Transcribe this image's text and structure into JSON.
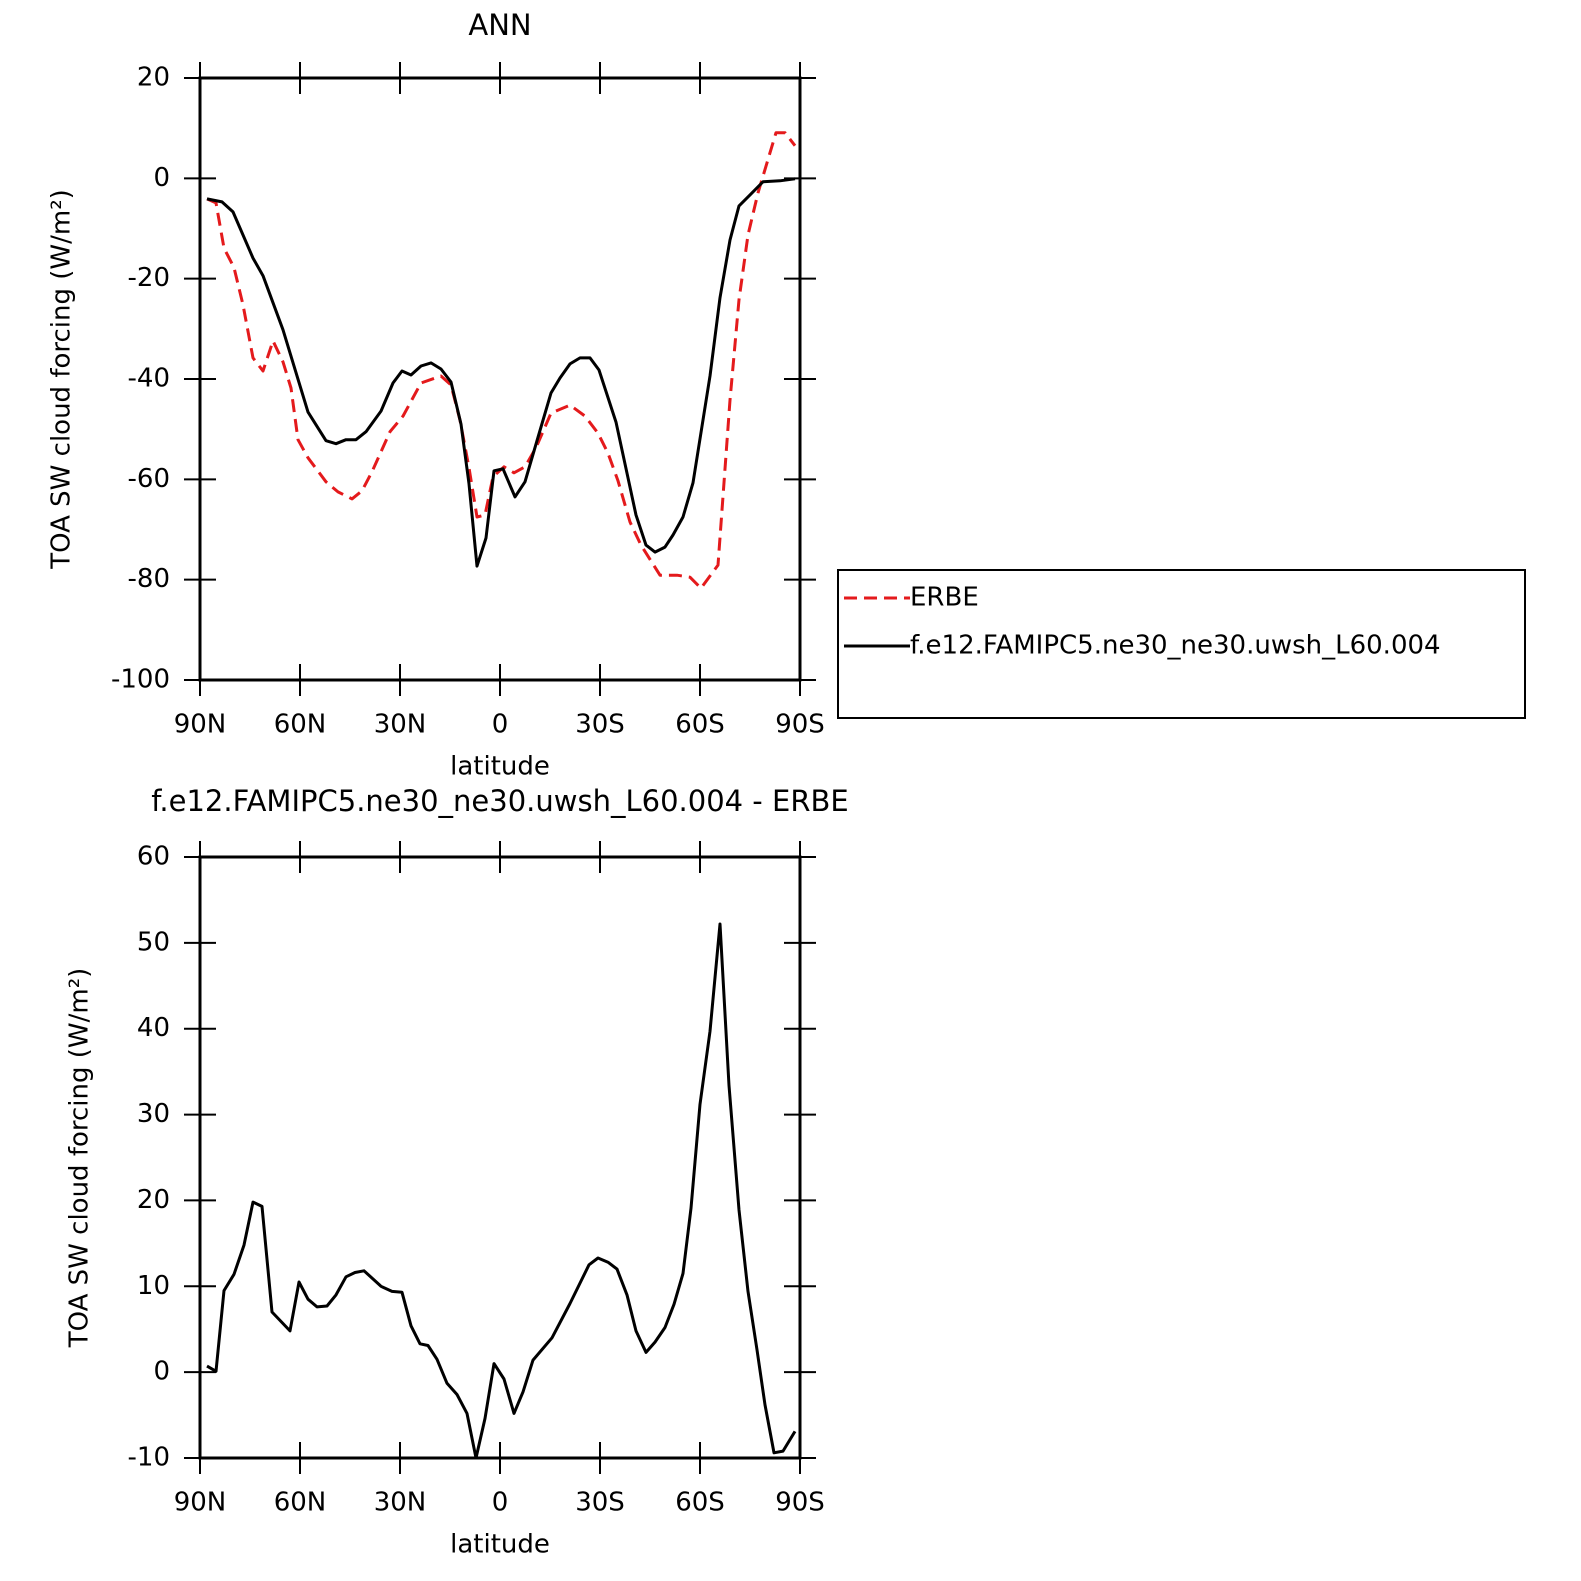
{
  "chart_data": [
    {
      "type": "line",
      "title": "ANN",
      "xlabel": "latitude",
      "ylabel": "TOA SW cloud forcing (W/m²)",
      "xlim": [
        90,
        -90
      ],
      "xticks": [
        {
          "value": 90,
          "label": "90N"
        },
        {
          "value": 60,
          "label": "60N"
        },
        {
          "value": 30,
          "label": "30N"
        },
        0,
        {
          "value": -30,
          "label": "30S"
        },
        {
          "value": -60,
          "label": "60S"
        },
        {
          "value": -90,
          "label": "90S"
        }
      ],
      "ylim": [
        -100,
        20
      ],
      "yticks": [
        -100,
        -80,
        -60,
        -40,
        -20,
        0,
        20
      ],
      "legend": "right",
      "series": [
        {
          "name": "ERBE",
          "color": "#e41a1c",
          "dash": true,
          "x": [
            87.9,
            85.2,
            82.8,
            79.8,
            77.1,
            74.1,
            71.1,
            68.1,
            65.1,
            62.7,
            60.6,
            57.6,
            52.2,
            48.6,
            44.4,
            41.4,
            38.4,
            33,
            29.1,
            23.7,
            17.7,
            14.7,
            12,
            9.3,
            6.9,
            4.5,
            2.1,
            -1.2,
            -4.2,
            -7.5,
            -10.8,
            -15.3,
            -21,
            -25.5,
            -29.4,
            -32.4,
            -35.4,
            -39,
            -42.3,
            -48,
            -53.1,
            -57,
            -60.3,
            -65.4,
            -69,
            -71.7,
            -74.4,
            -77.4,
            -80.1,
            -82.8,
            -85.5,
            -88.5
          ],
          "values": [
            -4.1,
            -4.9,
            -13.9,
            -17.8,
            -25.2,
            -35.8,
            -38.4,
            -32.4,
            -36.6,
            -41.8,
            -52.1,
            -55.7,
            -60.5,
            -62.5,
            -63.9,
            -62.3,
            -58.5,
            -50.5,
            -47.4,
            -40.8,
            -39.4,
            -41.2,
            -48.2,
            -57.7,
            -67.5,
            -67.1,
            -59.5,
            -57.5,
            -58.7,
            -57.5,
            -53.7,
            -46.8,
            -45.2,
            -47.4,
            -50.8,
            -54.8,
            -60.3,
            -68.5,
            -73.1,
            -79.1,
            -79.1,
            -79.5,
            -81.7,
            -77.1,
            -44.2,
            -24.2,
            -11.3,
            -2.9,
            3.1,
            9.1,
            9.1,
            6.5
          ]
        },
        {
          "name": "f.e12.FAMIPC5.ne30_ne30.uwsh_L60.004",
          "color": "#000000",
          "dash": false,
          "x": [
            87.9,
            83.4,
            80.1,
            74.1,
            71.1,
            65.1,
            57.6,
            52.2,
            49.2,
            46.2,
            43.2,
            40.2,
            35.7,
            32.1,
            29.4,
            26.7,
            23.7,
            20.7,
            17.7,
            14.7,
            11.7,
            9.3,
            6.9,
            4.2,
            1.8,
            -0.9,
            -4.5,
            -7.5,
            -11.1,
            -15.3,
            -18,
            -21,
            -24,
            -27,
            -29.7,
            -34.8,
            -40.8,
            -43.8,
            -46.5,
            -49.5,
            -51.9,
            -54.9,
            -57.9,
            -63,
            -66,
            -69,
            -71.7,
            -75,
            -78.9,
            -84,
            -88.5
          ],
          "values": [
            -4.1,
            -4.7,
            -6.7,
            -15.9,
            -19.4,
            -30.2,
            -46.6,
            -52.3,
            -52.9,
            -52.1,
            -52.1,
            -50.5,
            -46.4,
            -40.8,
            -38.4,
            -39.2,
            -37.4,
            -36.8,
            -38,
            -40.6,
            -49,
            -60.9,
            -77.3,
            -71.7,
            -58.3,
            -57.9,
            -63.5,
            -60.5,
            -52.3,
            -42.8,
            -39.8,
            -37,
            -35.8,
            -35.8,
            -38.2,
            -48.6,
            -67.1,
            -73.1,
            -74.5,
            -73.5,
            -71.1,
            -67.5,
            -60.7,
            -39.4,
            -23.8,
            -12.3,
            -5.5,
            -3.3,
            -0.7,
            -0.5,
            -0.1
          ]
        }
      ]
    },
    {
      "type": "line",
      "title": "f.e12.FAMIPC5.ne30_ne30.uwsh_L60.004 - ERBE",
      "xlabel": "latitude",
      "ylabel": "TOA SW cloud forcing (W/m²)",
      "xlim": [
        90,
        -90
      ],
      "xticks": [
        {
          "value": 90,
          "label": "90N"
        },
        {
          "value": 60,
          "label": "60N"
        },
        {
          "value": 30,
          "label": "30N"
        },
        0,
        {
          "value": -30,
          "label": "30S"
        },
        {
          "value": -60,
          "label": "60S"
        },
        {
          "value": -90,
          "label": "90S"
        }
      ],
      "ylim": [
        -10,
        60
      ],
      "yticks": [
        -10,
        0,
        10,
        20,
        30,
        40,
        50,
        60
      ],
      "series": [
        {
          "color": "#000000",
          "dash": false,
          "x": [
            87.9,
            85.2,
            82.8,
            79.8,
            76.8,
            74.1,
            71.4,
            68.4,
            63,
            60.3,
            57.6,
            54.9,
            51.9,
            49.2,
            46.2,
            43.5,
            40.8,
            35.7,
            32.4,
            29.4,
            26.7,
            24,
            21.6,
            18.9,
            15.9,
            12.9,
            9.9,
            7.2,
            4.5,
            1.8,
            -1.2,
            -4.2,
            -6.9,
            -9.9,
            -15.6,
            -21,
            -26.7,
            -29.4,
            -32.4,
            -35.1,
            -38.1,
            -40.8,
            -43.8,
            -46.5,
            -49.5,
            -52.2,
            -54.9,
            -57.3,
            -60,
            -63,
            -66,
            -68.7,
            -71.7,
            -74.4,
            -77.1,
            -79.5,
            -82.2,
            -84.9,
            -88.5
          ],
          "values": [
            0.7,
            0.1,
            9.5,
            11.4,
            14.8,
            19.8,
            19.3,
            7,
            4.8,
            10.5,
            8.5,
            7.6,
            7.7,
            9,
            11.1,
            11.6,
            11.8,
            10,
            9.4,
            9.3,
            5.4,
            3.3,
            3.1,
            1.5,
            -1.3,
            -2.6,
            -4.8,
            -10,
            -5.4,
            1,
            -0.8,
            -4.8,
            -2.3,
            1.4,
            4,
            8,
            12.5,
            13.3,
            12.8,
            12,
            9,
            4.8,
            2.3,
            3.5,
            5.2,
            7.9,
            11.5,
            19.1,
            31.2,
            39.7,
            52.2,
            33.4,
            18.9,
            9.4,
            2.6,
            -3.8,
            -9.4,
            -9.2,
            -6.9
          ]
        }
      ]
    }
  ]
}
